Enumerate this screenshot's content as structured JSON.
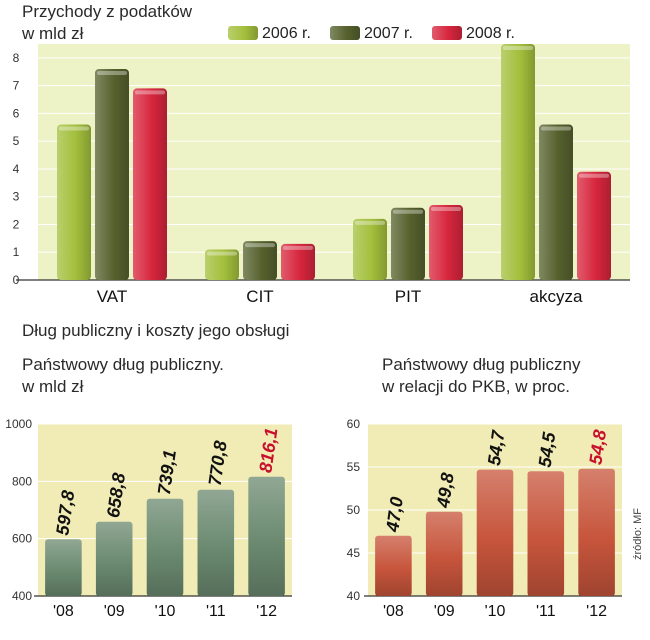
{
  "chart_data": [
    {
      "type": "bar",
      "title": "Przychody z podatków",
      "subtitle": "w mld zł",
      "categories": [
        "VAT",
        "CIT",
        "PIT",
        "akcyza"
      ],
      "series": [
        {
          "name": "2006 r.",
          "color": "#a3bf3c",
          "values": [
            5.6,
            1.1,
            2.2,
            8.5
          ]
        },
        {
          "name": "2007 r.",
          "color": "#56612e",
          "values": [
            7.6,
            1.4,
            2.6,
            5.6
          ]
        },
        {
          "name": "2008 r.",
          "color": "#d7263d",
          "values": [
            6.9,
            1.3,
            2.7,
            3.9
          ]
        }
      ],
      "ylim": [
        0,
        8.5
      ],
      "yticks": [
        "0",
        "1",
        "2",
        "3",
        "4",
        "5",
        "6",
        "7",
        "8"
      ],
      "background": "#eef2c7",
      "grid": true
    },
    {
      "type": "bar",
      "title": "Państwowy dług publiczny.",
      "subtitle": "w mld zł",
      "categories": [
        "'08",
        "'09",
        "'10",
        "'11",
        "'12"
      ],
      "values": [
        597.8,
        658.8,
        739.1,
        770.8,
        816.1
      ],
      "value_labels": [
        "597,8",
        "658,8",
        "739,1",
        "770,8",
        "816,1"
      ],
      "highlight_index": 4,
      "bar_color": "#6b8a70",
      "label_color": "#111111",
      "highlight_label_color": "#c8102e",
      "ylim": [
        400,
        1000
      ],
      "yticks": [
        "400",
        "600",
        "800",
        "1000"
      ],
      "background": "#f1ecb5"
    },
    {
      "type": "bar",
      "title": "Państwowy dług publiczny",
      "subtitle": "w relacji do PKB, w proc.",
      "categories": [
        "'08",
        "'09",
        "'10",
        "'11",
        "'12"
      ],
      "values": [
        47.0,
        49.8,
        54.7,
        54.5,
        54.8
      ],
      "value_labels": [
        "47,0",
        "49,8",
        "54,7",
        "54,5",
        "54,8"
      ],
      "highlight_index": 4,
      "bar_color": "#c7553c",
      "label_color": "#111111",
      "highlight_label_color": "#c8102e",
      "ylim": [
        40,
        60
      ],
      "yticks": [
        "40",
        "45",
        "50",
        "55",
        "60"
      ],
      "background": "#f1ecb5"
    }
  ],
  "section_title": "Dług publiczny i koszty jego obsługi",
  "source": "źródło: MF"
}
